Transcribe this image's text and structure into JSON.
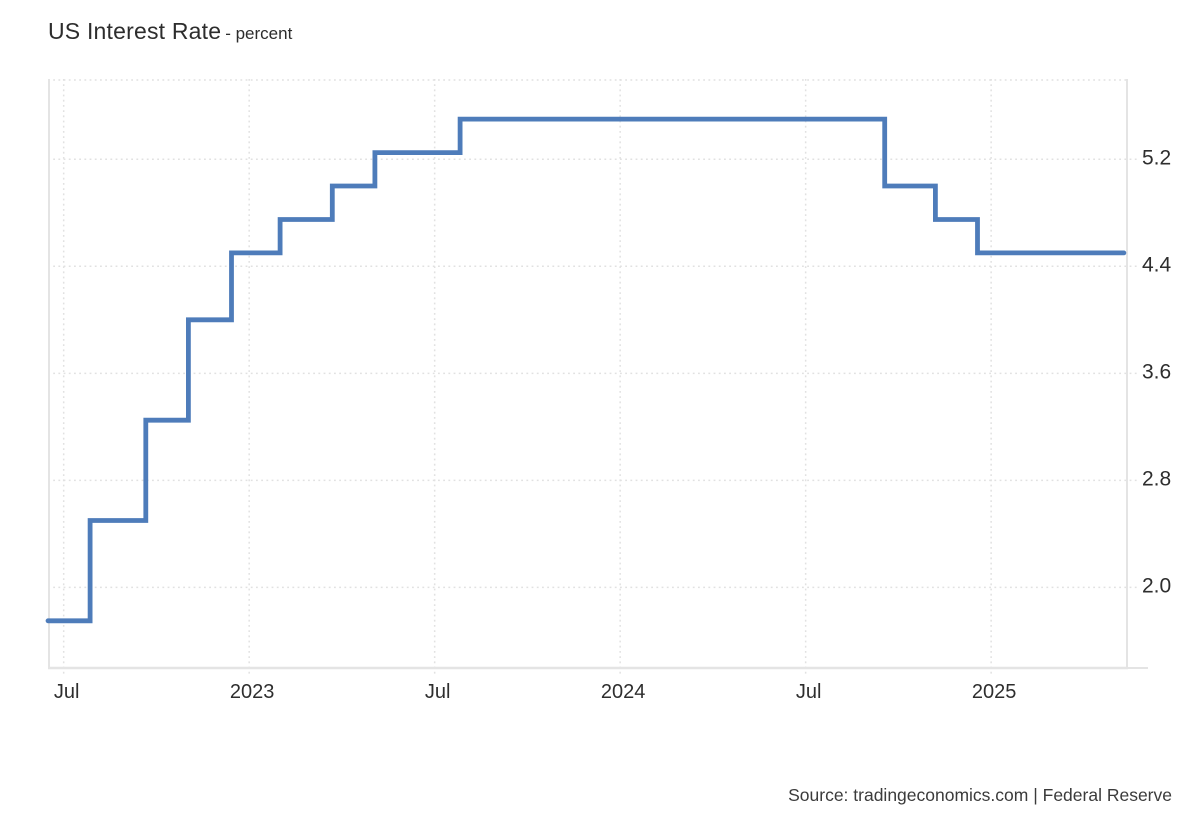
{
  "page": {
    "title_main": "US Interest Rate",
    "title_suffix": "- percent",
    "source_text": "Source: tradingeconomics.com | Federal Reserve"
  },
  "colors": {
    "background": "#ffffff",
    "line": "#4e7cba",
    "grid": "#e1e1e1",
    "axis_border": "#e4e4e4",
    "title_text": "#2d2d2d",
    "tick_text": "#2e2e2e",
    "source_text": "#3b3b3b"
  },
  "chart_data": {
    "type": "line",
    "subtype": "step-after",
    "title": "US Interest Rate - percent",
    "unit": "percent",
    "grid": true,
    "legend": false,
    "x_range": [
      "2022-06-16",
      "2025-05-14"
    ],
    "y_range": [
      1.39,
      5.8
    ],
    "series": [
      {
        "name": "US Interest Rate",
        "points": [
          {
            "date": "2022-06-16",
            "value": 1.75
          },
          {
            "date": "2022-07-27",
            "value": 2.5
          },
          {
            "date": "2022-09-21",
            "value": 3.25
          },
          {
            "date": "2022-11-02",
            "value": 4.0
          },
          {
            "date": "2022-12-14",
            "value": 4.5
          },
          {
            "date": "2023-02-01",
            "value": 4.75
          },
          {
            "date": "2023-03-22",
            "value": 5.0
          },
          {
            "date": "2023-05-03",
            "value": 5.25
          },
          {
            "date": "2023-07-26",
            "value": 5.5
          },
          {
            "date": "2024-09-18",
            "value": 5.0
          },
          {
            "date": "2024-11-07",
            "value": 4.75
          },
          {
            "date": "2024-12-18",
            "value": 4.5
          },
          {
            "date": "2025-05-10",
            "value": 4.5
          }
        ]
      }
    ],
    "x_ticks": [
      {
        "label": "Jul",
        "date": "2022-07-01"
      },
      {
        "label": "2023",
        "date": "2023-01-01"
      },
      {
        "label": "Jul",
        "date": "2023-07-01"
      },
      {
        "label": "2024",
        "date": "2024-01-01"
      },
      {
        "label": "Jul",
        "date": "2024-07-01"
      },
      {
        "label": "2025",
        "date": "2025-01-01"
      }
    ],
    "y_ticks": [
      {
        "label": "5.2",
        "value": 5.2
      },
      {
        "label": "4.4",
        "value": 4.4
      },
      {
        "label": "3.6",
        "value": 3.6
      },
      {
        "label": "2.8",
        "value": 2.8
      },
      {
        "label": "2.0",
        "value": 2.0
      }
    ]
  }
}
